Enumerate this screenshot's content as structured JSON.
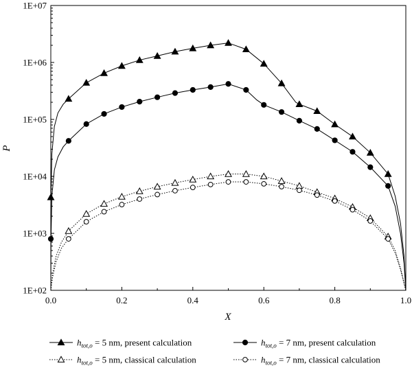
{
  "chart_data": {
    "type": "line",
    "xlabel": "X",
    "ylabel": "P",
    "xlim": [
      0,
      1
    ],
    "ylim": [
      100,
      10000000
    ],
    "yscale": "log",
    "x_ticks": [
      "0.0",
      "0.2",
      "0.4",
      "0.6",
      "0.8",
      "1.0"
    ],
    "y_ticks": [
      "1E+02",
      "1E+03",
      "1E+04",
      "1E+05",
      "1E+06",
      "1E+07"
    ],
    "grid": false,
    "legend_position": "bottom",
    "series": [
      {
        "key": "p5",
        "legend": {
          "pre": "",
          "math": "h",
          "sub": "tot,o",
          "post": " = 5 nm, present calculation"
        },
        "marker": "triangle-filled",
        "line": "solid",
        "markers": [
          [
            0.0,
            4300
          ],
          [
            0.05,
            230000
          ],
          [
            0.1,
            440000
          ],
          [
            0.15,
            650000
          ],
          [
            0.2,
            870000
          ],
          [
            0.25,
            1100000
          ],
          [
            0.3,
            1300000
          ],
          [
            0.35,
            1550000
          ],
          [
            0.4,
            1770000
          ],
          [
            0.45,
            2000000
          ],
          [
            0.5,
            2200000
          ],
          [
            0.55,
            1700000
          ],
          [
            0.6,
            950000
          ],
          [
            0.65,
            430000
          ],
          [
            0.7,
            185000
          ],
          [
            0.75,
            140000
          ],
          [
            0.8,
            82000
          ],
          [
            0.85,
            50000
          ],
          [
            0.9,
            26000
          ],
          [
            0.95,
            11000
          ]
        ],
        "curve": [
          [
            0.0,
            100
          ],
          [
            0.0005,
            4300
          ],
          [
            0.003,
            25000
          ],
          [
            0.01,
            75000
          ],
          [
            0.02,
            130000
          ],
          [
            0.035,
            185000
          ],
          [
            0.05,
            230000
          ],
          [
            0.1,
            440000
          ],
          [
            0.15,
            650000
          ],
          [
            0.2,
            870000
          ],
          [
            0.25,
            1100000
          ],
          [
            0.3,
            1300000
          ],
          [
            0.35,
            1550000
          ],
          [
            0.4,
            1770000
          ],
          [
            0.45,
            2000000
          ],
          [
            0.5,
            2200000
          ],
          [
            0.55,
            1700000
          ],
          [
            0.6,
            950000
          ],
          [
            0.65,
            430000
          ],
          [
            0.69,
            200000
          ],
          [
            0.7,
            185000
          ],
          [
            0.75,
            140000
          ],
          [
            0.8,
            82000
          ],
          [
            0.85,
            50000
          ],
          [
            0.9,
            26000
          ],
          [
            0.95,
            11000
          ],
          [
            0.97,
            4500
          ],
          [
            0.985,
            1500
          ],
          [
            0.995,
            400
          ],
          [
            1.0,
            100
          ]
        ]
      },
      {
        "key": "p7",
        "legend": {
          "pre": "",
          "math": "h",
          "sub": "tot,o",
          "post": " = 7 nm, present calculation"
        },
        "marker": "circle-filled",
        "line": "solid",
        "markers": [
          [
            0.0,
            800
          ],
          [
            0.05,
            42000
          ],
          [
            0.1,
            83000
          ],
          [
            0.15,
            125000
          ],
          [
            0.2,
            165000
          ],
          [
            0.25,
            205000
          ],
          [
            0.3,
            245000
          ],
          [
            0.35,
            290000
          ],
          [
            0.4,
            330000
          ],
          [
            0.45,
            370000
          ],
          [
            0.5,
            420000
          ],
          [
            0.55,
            330000
          ],
          [
            0.6,
            180000
          ],
          [
            0.65,
            135000
          ],
          [
            0.7,
            95000
          ],
          [
            0.75,
            68000
          ],
          [
            0.8,
            43000
          ],
          [
            0.85,
            27000
          ],
          [
            0.9,
            14500
          ],
          [
            0.95,
            6800
          ]
        ],
        "curve": [
          [
            0.0,
            100
          ],
          [
            0.0005,
            800
          ],
          [
            0.003,
            4500
          ],
          [
            0.01,
            13000
          ],
          [
            0.02,
            22000
          ],
          [
            0.035,
            33000
          ],
          [
            0.05,
            42000
          ],
          [
            0.1,
            83000
          ],
          [
            0.15,
            125000
          ],
          [
            0.2,
            165000
          ],
          [
            0.25,
            205000
          ],
          [
            0.3,
            245000
          ],
          [
            0.35,
            290000
          ],
          [
            0.4,
            330000
          ],
          [
            0.45,
            370000
          ],
          [
            0.5,
            420000
          ],
          [
            0.55,
            330000
          ],
          [
            0.58,
            220000
          ],
          [
            0.6,
            180000
          ],
          [
            0.65,
            135000
          ],
          [
            0.7,
            95000
          ],
          [
            0.75,
            68000
          ],
          [
            0.8,
            43000
          ],
          [
            0.85,
            27000
          ],
          [
            0.9,
            14500
          ],
          [
            0.95,
            6800
          ],
          [
            0.97,
            3000
          ],
          [
            0.985,
            1000
          ],
          [
            0.995,
            300
          ],
          [
            1.0,
            100
          ]
        ]
      },
      {
        "key": "c5",
        "legend": {
          "pre": "",
          "math": "h",
          "sub": "tot,o",
          "post": " = 5 nm, classical calculation"
        },
        "marker": "triangle-open",
        "line": "dotted",
        "markers": [
          [
            0.05,
            1100
          ],
          [
            0.1,
            2200
          ],
          [
            0.15,
            3300
          ],
          [
            0.2,
            4400
          ],
          [
            0.25,
            5500
          ],
          [
            0.3,
            6600
          ],
          [
            0.35,
            7700
          ],
          [
            0.4,
            8800
          ],
          [
            0.45,
            10000
          ],
          [
            0.5,
            11000
          ],
          [
            0.55,
            11000
          ],
          [
            0.6,
            10000
          ],
          [
            0.65,
            8300
          ],
          [
            0.7,
            6800
          ],
          [
            0.75,
            5300
          ],
          [
            0.8,
            4100
          ],
          [
            0.85,
            2900
          ],
          [
            0.9,
            1850
          ],
          [
            0.95,
            880
          ]
        ],
        "curve": [
          [
            0.0,
            100
          ],
          [
            0.005,
            200
          ],
          [
            0.015,
            400
          ],
          [
            0.03,
            700
          ],
          [
            0.05,
            1100
          ],
          [
            0.1,
            2200
          ],
          [
            0.15,
            3300
          ],
          [
            0.2,
            4400
          ],
          [
            0.25,
            5500
          ],
          [
            0.3,
            6600
          ],
          [
            0.35,
            7700
          ],
          [
            0.4,
            8800
          ],
          [
            0.45,
            10000
          ],
          [
            0.5,
            11000
          ],
          [
            0.55,
            11000
          ],
          [
            0.6,
            10000
          ],
          [
            0.65,
            8300
          ],
          [
            0.7,
            6800
          ],
          [
            0.75,
            5300
          ],
          [
            0.8,
            4100
          ],
          [
            0.85,
            2900
          ],
          [
            0.9,
            1850
          ],
          [
            0.95,
            880
          ],
          [
            0.97,
            500
          ],
          [
            0.985,
            250
          ],
          [
            1.0,
            100
          ]
        ]
      },
      {
        "key": "c7",
        "legend": {
          "pre": "",
          "math": "h",
          "sub": "tot,o",
          "post": " = 7 nm, classical calculation"
        },
        "marker": "circle-open",
        "line": "dotted",
        "markers": [
          [
            0.05,
            800
          ],
          [
            0.1,
            1600
          ],
          [
            0.15,
            2400
          ],
          [
            0.2,
            3200
          ],
          [
            0.25,
            4000
          ],
          [
            0.3,
            4800
          ],
          [
            0.35,
            5600
          ],
          [
            0.4,
            6400
          ],
          [
            0.45,
            7200
          ],
          [
            0.5,
            8000
          ],
          [
            0.55,
            8000
          ],
          [
            0.6,
            7400
          ],
          [
            0.65,
            6600
          ],
          [
            0.7,
            5700
          ],
          [
            0.75,
            4700
          ],
          [
            0.8,
            3700
          ],
          [
            0.85,
            2600
          ],
          [
            0.9,
            1650
          ],
          [
            0.95,
            800
          ]
        ],
        "curve": [
          [
            0.0,
            100
          ],
          [
            0.005,
            170
          ],
          [
            0.015,
            320
          ],
          [
            0.03,
            550
          ],
          [
            0.05,
            800
          ],
          [
            0.1,
            1600
          ],
          [
            0.15,
            2400
          ],
          [
            0.2,
            3200
          ],
          [
            0.25,
            4000
          ],
          [
            0.3,
            4800
          ],
          [
            0.35,
            5600
          ],
          [
            0.4,
            6400
          ],
          [
            0.45,
            7200
          ],
          [
            0.5,
            8000
          ],
          [
            0.55,
            8000
          ],
          [
            0.6,
            7400
          ],
          [
            0.65,
            6600
          ],
          [
            0.7,
            5700
          ],
          [
            0.75,
            4700
          ],
          [
            0.8,
            3700
          ],
          [
            0.85,
            2600
          ],
          [
            0.9,
            1650
          ],
          [
            0.95,
            800
          ],
          [
            0.97,
            450
          ],
          [
            0.985,
            230
          ],
          [
            1.0,
            100
          ]
        ]
      }
    ]
  }
}
